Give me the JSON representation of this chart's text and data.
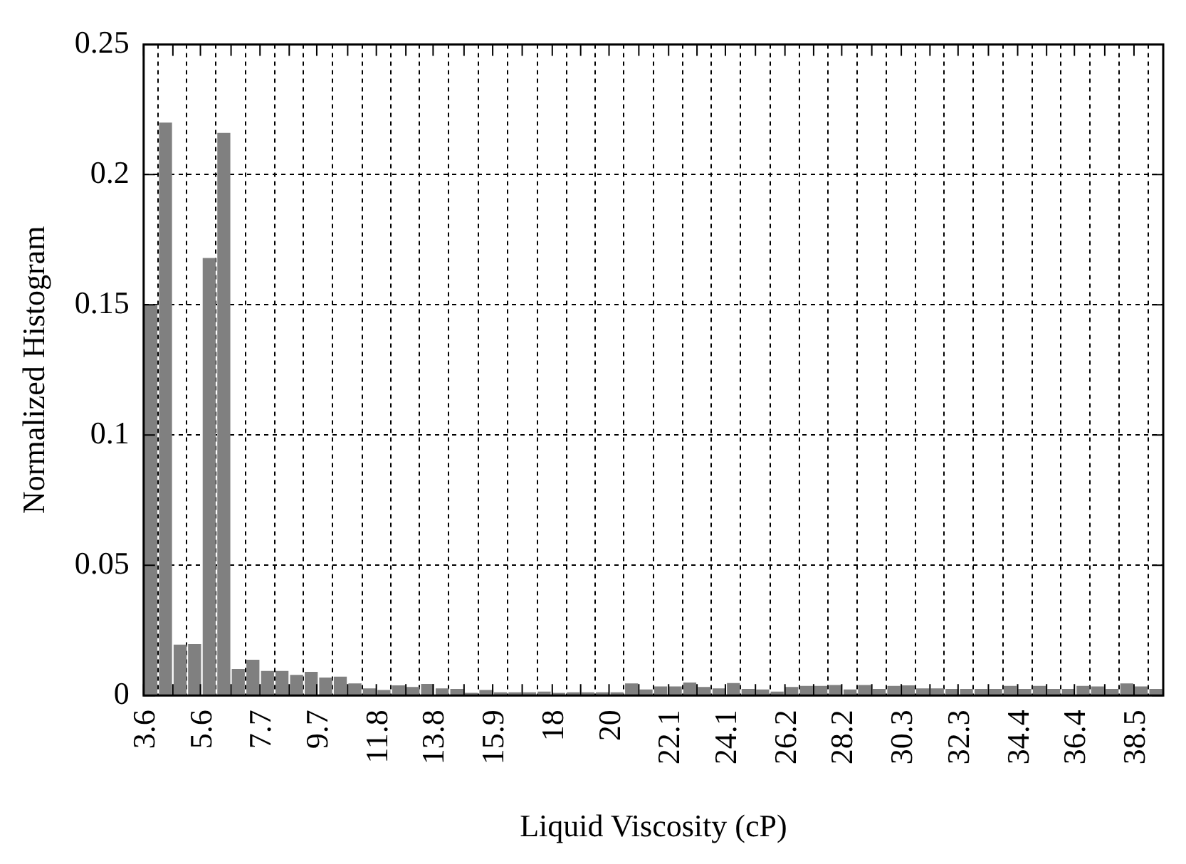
{
  "chart_data": {
    "type": "histogram",
    "xlabel": "Liquid Viscosity (cP)",
    "ylabel": "Normalized Histogram",
    "bins": [
      3.6,
      4.11,
      4.63,
      5.14,
      5.65,
      6.17,
      6.68,
      7.19,
      7.71,
      8.22,
      8.73,
      9.25,
      9.76,
      10.27,
      10.79,
      11.3,
      11.81,
      12.33,
      12.84,
      13.35,
      13.86,
      14.38,
      14.89,
      15.4,
      15.92,
      16.43,
      16.94,
      17.46,
      17.97,
      18.48,
      19.0,
      19.51,
      20.02,
      20.54,
      21.05,
      21.56,
      22.08,
      22.59,
      23.1,
      23.62,
      24.13,
      24.64,
      25.16,
      25.67,
      26.18,
      26.7,
      27.21,
      27.72,
      28.24,
      28.75,
      29.26,
      29.78,
      30.29,
      30.8,
      31.31,
      31.83,
      32.34,
      32.85,
      33.37,
      33.88,
      34.39,
      34.91,
      35.42,
      35.93,
      36.45,
      36.96,
      37.47,
      37.99,
      38.5,
      39.01,
      39.53
    ],
    "values": [
      0.15,
      0.22,
      0.0195,
      0.0197,
      0.168,
      0.216,
      0.0102,
      0.0137,
      0.0094,
      0.0094,
      0.0079,
      0.0091,
      0.0069,
      0.0072,
      0.0046,
      0.0027,
      0.0021,
      0.0039,
      0.0033,
      0.0044,
      0.0027,
      0.0025,
      0.001,
      0.0021,
      0.0012,
      0.0012,
      0.0012,
      0.0015,
      0.001,
      0.0012,
      0.0012,
      0.0012,
      0.0012,
      0.0046,
      0.0023,
      0.0035,
      0.0035,
      0.005,
      0.0033,
      0.0027,
      0.0048,
      0.0025,
      0.0023,
      0.0015,
      0.0033,
      0.0037,
      0.0037,
      0.004,
      0.0023,
      0.004,
      0.0025,
      0.0037,
      0.0039,
      0.0027,
      0.0027,
      0.0025,
      0.0025,
      0.0025,
      0.0025,
      0.0037,
      0.0025,
      0.0037,
      0.0025,
      0.0025,
      0.0037,
      0.0035,
      0.0025,
      0.0046,
      0.0035,
      0.0025
    ],
    "color": "#808080",
    "xlim": [
      3.6,
      39.53
    ],
    "xticks": [
      3.6,
      {
        "value": 4.63,
        "label": null
      },
      5.6,
      {
        "value": 6.68,
        "label": null
      },
      7.7,
      {
        "value": 8.73,
        "label": null
      },
      9.7,
      {
        "value": 10.79,
        "label": null
      },
      11.8,
      {
        "value": 12.84,
        "label": null
      },
      13.8,
      {
        "value": 14.89,
        "label": null
      },
      15.9,
      {
        "value": 16.94,
        "label": null
      },
      18,
      {
        "value": 19.0,
        "label": null
      },
      20,
      {
        "value": 21.05,
        "label": null
      },
      22.1,
      {
        "value": 23.1,
        "label": null
      },
      24.1,
      {
        "value": 25.16,
        "label": null
      },
      26.2,
      {
        "value": 27.21,
        "label": null
      },
      28.2,
      {
        "value": 29.26,
        "label": null
      },
      30.3,
      {
        "value": 31.31,
        "label": null
      },
      32.3,
      {
        "value": 33.37,
        "label": null
      },
      34.4,
      {
        "value": 35.42,
        "label": null
      },
      36.4,
      {
        "value": 37.47,
        "label": null
      },
      38.5
    ],
    "ylim": [
      0,
      0.25
    ],
    "yticks": [
      0,
      0.05,
      0.1,
      0.15,
      0.2,
      0.25
    ],
    "grid": true
  }
}
